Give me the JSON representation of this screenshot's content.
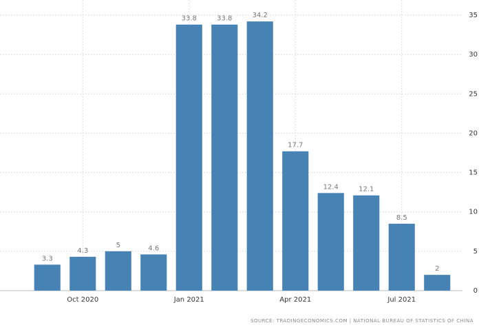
{
  "chart_data": {
    "type": "bar",
    "categories": [
      null,
      "Oct 2020",
      null,
      null,
      "Jan 2021",
      null,
      null,
      "Apr 2021",
      null,
      null,
      "Jul 2021",
      null
    ],
    "values": [
      3.3,
      4.3,
      5,
      4.6,
      33.8,
      33.8,
      34.2,
      17.7,
      12.4,
      12.1,
      8.5,
      2
    ],
    "color": "#4682b4",
    "ylim": [
      0,
      35
    ],
    "yticks": [
      0,
      5,
      10,
      15,
      20,
      25,
      30,
      35
    ],
    "grid": true,
    "source": "SOURCE: TRADINGECONOMICS.COM | NATIONAL BUREAU OF STATISTICS OF CHINA"
  }
}
